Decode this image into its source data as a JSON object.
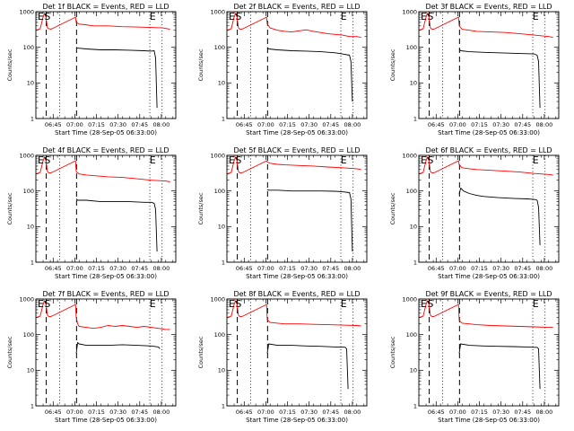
{
  "chart_data": {
    "type": "line",
    "scale": "log",
    "layout": "3x3 grid",
    "series_legend": {
      "black": "Events",
      "red": "LLD"
    },
    "xlabel": "Start Time (28-Sep-05 06:33:00)",
    "ylabel": "Counts/sec",
    "xlim_minutes": [
      0,
      97
    ],
    "ylim": [
      1,
      1000
    ],
    "yticks": [
      {
        "value": 1,
        "label": "1"
      },
      {
        "value": 10,
        "label": "10"
      },
      {
        "value": 100,
        "label": "100"
      },
      {
        "value": 1000,
        "label": "1000"
      }
    ],
    "xticks": [
      {
        "minute": 12,
        "label": "06:45"
      },
      {
        "minute": 27,
        "label": "07:00"
      },
      {
        "minute": 42,
        "label": "07:15"
      },
      {
        "minute": 57,
        "label": "07:30"
      },
      {
        "minute": 72,
        "label": "07:45"
      },
      {
        "minute": 87,
        "label": "08:00"
      }
    ],
    "markers": {
      "start_label": "S",
      "end_label": "E"
    },
    "panels": [
      {
        "title": "Det 1f BLACK = Events, RED = LLD",
        "red": {
          "x": [
            0,
            3,
            5,
            6,
            7,
            8,
            9,
            10,
            10.5,
            11,
            27.5,
            28,
            30,
            34,
            40,
            50,
            60,
            70,
            80,
            88,
            93
          ],
          "y": [
            300,
            330,
            700,
            900,
            700,
            350,
            330,
            330,
            320,
            330,
            700,
            500,
            450,
            430,
            400,
            400,
            380,
            370,
            360,
            350,
            320
          ]
        },
        "black": {
          "x": [
            28,
            29,
            35,
            45,
            55,
            65,
            75,
            80,
            82,
            83,
            84
          ],
          "y": [
            100,
            95,
            90,
            85,
            85,
            83,
            80,
            78,
            80,
            50,
            2
          ]
        },
        "vlines_dashed": [
          7.2,
          28.2
        ],
        "vlines_dotted": [
          16.5,
          79,
          87.5
        ],
        "S_minute": 8,
        "E_minute": 81
      },
      {
        "title": "Det 2f BLACK = Events, RED = LLD",
        "red": {
          "x": [
            0,
            3,
            5,
            6,
            7,
            8,
            9,
            10,
            11,
            27.5,
            28,
            30,
            35,
            40,
            45,
            50,
            55,
            60,
            65,
            70,
            75,
            80,
            85,
            90,
            93
          ],
          "y": [
            300,
            330,
            700,
            900,
            700,
            350,
            320,
            320,
            330,
            700,
            450,
            350,
            300,
            280,
            270,
            290,
            310,
            280,
            260,
            240,
            230,
            220,
            200,
            200,
            190
          ]
        },
        "black": {
          "x": [
            28,
            29,
            35,
            45,
            55,
            65,
            75,
            80,
            85,
            86,
            87
          ],
          "y": [
            100,
            90,
            85,
            80,
            78,
            75,
            70,
            65,
            60,
            40,
            3
          ]
        },
        "vlines_dashed": [
          7.2,
          28.2
        ],
        "vlines_dotted": [
          16.5,
          79,
          87.5
        ],
        "S_minute": 8,
        "E_minute": 81
      },
      {
        "title": "Det 3f BLACK = Events, RED = LLD",
        "red": {
          "x": [
            0,
            3,
            5,
            6,
            7,
            8,
            9,
            10,
            11,
            27.5,
            28,
            30,
            35,
            40,
            50,
            60,
            70,
            80,
            90,
            93
          ],
          "y": [
            300,
            330,
            700,
            900,
            700,
            350,
            320,
            320,
            330,
            700,
            400,
            320,
            300,
            280,
            270,
            260,
            240,
            220,
            200,
            190
          ]
        },
        "black": {
          "x": [
            28,
            29,
            35,
            45,
            55,
            65,
            75,
            80,
            82,
            83,
            84
          ],
          "y": [
            90,
            80,
            75,
            72,
            70,
            68,
            66,
            65,
            60,
            40,
            2
          ]
        },
        "vlines_dashed": [
          7.2,
          28.2
        ],
        "vlines_dotted": [
          16.5,
          79,
          87.5
        ],
        "S_minute": 8,
        "E_minute": 81
      },
      {
        "title": "Det 4f BLACK = Events, RED = LLD",
        "red": {
          "x": [
            0,
            3,
            5,
            6,
            7,
            8,
            9,
            10,
            11,
            27.5,
            28,
            30,
            35,
            40,
            50,
            60,
            70,
            80,
            90,
            93
          ],
          "y": [
            300,
            330,
            700,
            900,
            700,
            350,
            320,
            320,
            330,
            700,
            350,
            300,
            280,
            270,
            250,
            240,
            220,
            200,
            190,
            180
          ]
        },
        "black": {
          "x": [
            28,
            29,
            35,
            45,
            55,
            65,
            75,
            80,
            82,
            83,
            84
          ],
          "y": [
            60,
            55,
            55,
            50,
            50,
            50,
            48,
            48,
            45,
            30,
            2
          ]
        },
        "vlines_dashed": [
          7.2,
          28.2
        ],
        "vlines_dotted": [
          16.5,
          79,
          87.5
        ],
        "S_minute": 8,
        "E_minute": 81
      },
      {
        "title": "Det 5f BLACK = Events, RED = LLD",
        "red": {
          "x": [
            0,
            3,
            5,
            6,
            7,
            8,
            9,
            10,
            11,
            27.5,
            28,
            30,
            35,
            40,
            50,
            60,
            70,
            80,
            90,
            93
          ],
          "y": [
            300,
            330,
            700,
            900,
            700,
            350,
            320,
            320,
            330,
            700,
            650,
            600,
            560,
            540,
            520,
            500,
            470,
            450,
            420,
            400
          ]
        },
        "black": {
          "x": [
            28,
            29,
            35,
            45,
            55,
            65,
            75,
            80,
            85,
            86,
            87
          ],
          "y": [
            110,
            105,
            105,
            100,
            100,
            100,
            98,
            95,
            90,
            60,
            2
          ]
        },
        "vlines_dashed": [
          7.2,
          28.2
        ],
        "vlines_dotted": [
          16.5,
          79,
          87.5
        ],
        "S_minute": 8,
        "E_minute": 81
      },
      {
        "title": "Det 6f BLACK = Events, RED = LLD",
        "red": {
          "x": [
            0,
            3,
            5,
            6,
            7,
            8,
            9,
            10,
            11,
            27.5,
            28,
            30,
            35,
            40,
            50,
            60,
            70,
            80,
            90,
            93
          ],
          "y": [
            300,
            330,
            700,
            900,
            700,
            350,
            320,
            320,
            330,
            700,
            550,
            450,
            420,
            400,
            380,
            360,
            340,
            310,
            290,
            280
          ]
        },
        "black": {
          "x": [
            28,
            29,
            31,
            35,
            40,
            45,
            55,
            65,
            75,
            80,
            82,
            83,
            84
          ],
          "y": [
            80,
            120,
            100,
            85,
            75,
            70,
            65,
            62,
            60,
            58,
            55,
            35,
            3
          ]
        },
        "vlines_dashed": [
          7.2,
          28.2
        ],
        "vlines_dotted": [
          16.5,
          79,
          87.5
        ],
        "S_minute": 8,
        "E_minute": 81
      },
      {
        "title": "Det 7f BLACK = Events, RED = LLD",
        "red": {
          "x": [
            0,
            3,
            5,
            6,
            7,
            8,
            9,
            10,
            11,
            27.5,
            28,
            29,
            30,
            35,
            40,
            45,
            50,
            55,
            60,
            65,
            70,
            75,
            80,
            85,
            90,
            93
          ],
          "y": [
            300,
            330,
            700,
            900,
            700,
            350,
            320,
            320,
            330,
            700,
            300,
            200,
            170,
            160,
            150,
            160,
            180,
            170,
            180,
            170,
            160,
            170,
            160,
            150,
            140,
            140
          ]
        },
        "black": {
          "x": [
            28,
            29,
            30,
            35,
            40,
            50,
            60,
            70,
            80,
            85,
            86
          ],
          "y": [
            30,
            60,
            55,
            50,
            50,
            50,
            52,
            50,
            48,
            45,
            40
          ]
        },
        "vlines_dashed": [
          7.2,
          28.2
        ],
        "vlines_dotted": [
          16.5,
          79,
          87.5
        ],
        "S_minute": 8,
        "E_minute": 81
      },
      {
        "title": "Det 8f BLACK = Events, RED = LLD",
        "red": {
          "x": [
            0,
            3,
            5,
            6,
            7,
            8,
            9,
            10,
            11,
            27.5,
            28,
            30,
            35,
            40,
            50,
            60,
            70,
            80,
            90,
            93
          ],
          "y": [
            300,
            330,
            700,
            900,
            700,
            350,
            320,
            320,
            330,
            700,
            260,
            220,
            210,
            200,
            200,
            195,
            190,
            185,
            180,
            175
          ]
        },
        "black": {
          "x": [
            28,
            29,
            35,
            45,
            55,
            65,
            75,
            80,
            82,
            83,
            84
          ],
          "y": [
            30,
            55,
            50,
            50,
            48,
            47,
            45,
            45,
            44,
            40,
            3
          ]
        },
        "vlines_dashed": [
          7.2,
          28.2
        ],
        "vlines_dotted": [
          16.5,
          79,
          87.5
        ],
        "S_minute": 8,
        "E_minute": 81
      },
      {
        "title": "Det 9f BLACK = Events, RED = LLD",
        "red": {
          "x": [
            0,
            3,
            5,
            6,
            7,
            8,
            9,
            10,
            11,
            27.5,
            28,
            30,
            35,
            40,
            50,
            60,
            70,
            80,
            90,
            93
          ],
          "y": [
            300,
            330,
            700,
            900,
            700,
            350,
            320,
            320,
            330,
            700,
            250,
            210,
            200,
            190,
            180,
            175,
            170,
            165,
            160,
            160
          ]
        },
        "black": {
          "x": [
            28,
            29,
            35,
            45,
            55,
            65,
            75,
            80,
            82,
            83,
            84
          ],
          "y": [
            30,
            55,
            50,
            48,
            47,
            46,
            45,
            44,
            44,
            40,
            3
          ]
        },
        "vlines_dashed": [
          7.2,
          28.2
        ],
        "vlines_dotted": [
          16.5,
          79,
          87.5
        ],
        "S_minute": 8,
        "E_minute": 81
      }
    ]
  },
  "colors": {
    "events": "#000000",
    "lld": "#ff0000",
    "axis": "#000000",
    "background": "#ffffff"
  }
}
